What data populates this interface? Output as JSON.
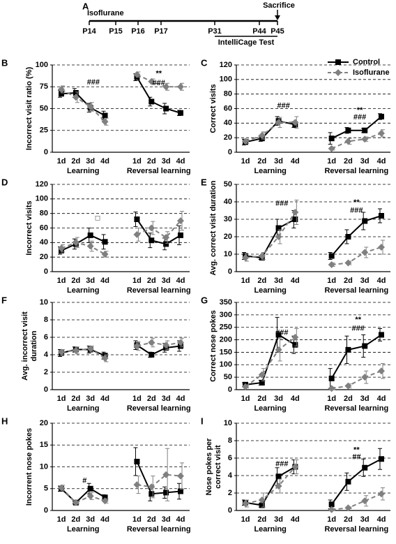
{
  "timeline": {
    "label": "A",
    "start": "Isoflurane",
    "end": "Sacrifice",
    "test": "IntelliCage Test",
    "ticks": [
      "P14",
      "P15",
      "P16",
      "P17",
      "P31",
      "P44",
      "P45"
    ]
  },
  "chart_data": [
    {
      "type": "line",
      "label": "B",
      "ylabel": [
        "Incorrect visit ratio (%)"
      ],
      "categories": [
        "1d",
        "2d",
        "3d",
        "4d",
        "1d",
        "2d",
        "3d",
        "4d"
      ],
      "groups": [
        "Learning",
        "Reversal learning"
      ],
      "ylim": [
        0,
        100
      ],
      "yticks": [
        0,
        25,
        50,
        75,
        100
      ],
      "grid": true,
      "series": [
        {
          "name": "Control",
          "color": "#000000",
          "values": [
            67,
            68,
            51,
            42,
            86,
            58,
            50,
            45
          ],
          "errors": [
            4,
            5,
            5,
            5,
            4,
            5,
            6,
            3
          ]
        },
        {
          "name": "Isoflurane",
          "color": "#808080",
          "values": [
            72,
            63,
            52,
            35,
            89,
            81,
            75,
            75
          ],
          "errors": [
            4,
            6,
            5,
            4,
            3,
            3,
            4,
            4
          ]
        }
      ],
      "annotations": [
        "###",
        "**",
        "###"
      ]
    },
    {
      "type": "line",
      "label": "C",
      "ylabel": [
        "Correct visits"
      ],
      "categories": [
        "1d",
        "2d",
        "3d",
        "4d",
        "1d",
        "2d",
        "3d",
        "4d"
      ],
      "groups": [
        "Learning",
        "Reversal learning"
      ],
      "ylim": [
        0,
        120
      ],
      "yticks": [
        0,
        20,
        40,
        60,
        80,
        100,
        120
      ],
      "grid": true,
      "series": [
        {
          "name": "Control",
          "color": "#000000",
          "values": [
            14,
            19,
            43,
            38,
            19,
            30,
            30,
            49
          ],
          "errors": [
            4,
            4,
            6,
            4,
            8,
            4,
            3,
            4
          ]
        },
        {
          "name": "Isoflurane",
          "color": "#808080",
          "values": [
            15,
            23,
            41,
            41,
            5,
            15,
            18,
            26
          ],
          "errors": [
            3,
            5,
            7,
            8,
            2,
            4,
            3,
            5
          ]
        }
      ],
      "annotations": [
        "###",
        "**",
        "###"
      ]
    },
    {
      "type": "line",
      "label": "D",
      "ylabel": [
        "Incorrect visits"
      ],
      "categories": [
        "1d",
        "2d",
        "3d",
        "4d",
        "1d",
        "2d",
        "3d",
        "4d"
      ],
      "groups": [
        "Learning",
        "Reversal learning"
      ],
      "ylim": [
        0,
        120
      ],
      "yticks": [
        0,
        20,
        40,
        60,
        80,
        100,
        120
      ],
      "grid": true,
      "series": [
        {
          "name": "Control",
          "color": "#000000",
          "values": [
            29,
            38,
            50,
            41,
            72,
            43,
            38,
            50
          ],
          "errors": [
            5,
            7,
            10,
            10,
            10,
            10,
            8,
            13
          ]
        },
        {
          "name": "Isoflurane",
          "color": "#808080",
          "values": [
            32,
            40,
            35,
            24,
            51,
            60,
            47,
            70
          ],
          "errors": [
            5,
            7,
            7,
            4,
            9,
            9,
            8,
            13
          ]
        }
      ],
      "annotations": [
        "□"
      ]
    },
    {
      "type": "line",
      "label": "E",
      "ylabel": [
        "Avg. correct visit duration"
      ],
      "categories": [
        "1d",
        "2d",
        "3d",
        "4d",
        "1d",
        "2d",
        "3d",
        "4d"
      ],
      "groups": [
        "Learning",
        "Reversal learning"
      ],
      "ylim": [
        0,
        50
      ],
      "yticks": [
        0,
        10,
        20,
        30,
        40,
        50
      ],
      "grid": true,
      "series": [
        {
          "name": "Control",
          "color": "#000000",
          "values": [
            9,
            8,
            25,
            30,
            9,
            20,
            29,
            32
          ],
          "errors": [
            2,
            1,
            5,
            5,
            2,
            4,
            5,
            4
          ]
        },
        {
          "name": "Isoflurane",
          "color": "#808080",
          "values": [
            8,
            9,
            20,
            34,
            4,
            5,
            11,
            14
          ],
          "errors": [
            2,
            2,
            4,
            7,
            1,
            1,
            3,
            4
          ]
        }
      ],
      "annotations": [
        "###",
        "**",
        "###"
      ]
    },
    {
      "type": "line",
      "label": "F",
      "ylabel": [
        "Avg. incorrect visit",
        "duration"
      ],
      "categories": [
        "1d",
        "2d",
        "3d",
        "4d",
        "1d",
        "2d",
        "3d",
        "4d"
      ],
      "groups": [
        "Learning",
        "Reversal learning"
      ],
      "ylim": [
        0,
        10
      ],
      "yticks": [
        0,
        2,
        4,
        6,
        8,
        10
      ],
      "grid": true,
      "series": [
        {
          "name": "Control",
          "color": "#000000",
          "values": [
            4.2,
            4.6,
            4.6,
            3.9,
            5.1,
            4.0,
            4.8,
            5.0
          ],
          "errors": [
            0.4,
            0.3,
            0.4,
            0.4,
            0.5,
            0.3,
            0.5,
            0.6
          ]
        },
        {
          "name": "Isoflurane",
          "color": "#808080",
          "values": [
            4.3,
            4.5,
            4.7,
            3.6,
            5.0,
            5.4,
            5.1,
            5.4
          ],
          "errors": [
            0.3,
            0.4,
            0.3,
            0.4,
            0.5,
            0.5,
            0.5,
            0.5
          ]
        }
      ]
    },
    {
      "type": "line",
      "label": "G",
      "ylabel": [
        "Correct nose pokes"
      ],
      "categories": [
        "1d",
        "2d",
        "3d",
        "4d",
        "1d",
        "2d",
        "3d",
        "4d"
      ],
      "groups": [
        "Learning",
        "Reversal learning"
      ],
      "ylim": [
        0,
        350
      ],
      "yticks": [
        0,
        50,
        100,
        150,
        200,
        250,
        300,
        350
      ],
      "grid": true,
      "series": [
        {
          "name": "Control",
          "color": "#000000",
          "values": [
            20,
            28,
            220,
            180,
            45,
            160,
            175,
            220
          ],
          "errors": [
            8,
            10,
            70,
            35,
            40,
            55,
            45,
            25
          ]
        },
        {
          "name": "Isoflurane",
          "color": "#808080",
          "values": [
            12,
            60,
            160,
            210,
            5,
            15,
            50,
            75
          ],
          "errors": [
            5,
            25,
            45,
            35,
            5,
            8,
            25,
            30
          ]
        }
      ],
      "annotations": [
        "###",
        "**",
        "###"
      ]
    },
    {
      "type": "line",
      "label": "H",
      "ylabel": [
        "Incorrent nose pokes"
      ],
      "categories": [
        "1d",
        "2d",
        "3d",
        "4d",
        "1d",
        "2d",
        "3d",
        "4d"
      ],
      "groups": [
        "Learning",
        "Reversal learning"
      ],
      "ylim": [
        0,
        20
      ],
      "yticks": [
        0,
        5,
        10,
        15,
        20
      ],
      "grid": true,
      "series": [
        {
          "name": "Control",
          "color": "#000000",
          "values": [
            5.0,
            1.8,
            5.0,
            3.0,
            11.2,
            3.8,
            4.1,
            4.4
          ],
          "errors": [
            0.6,
            0.3,
            1.2,
            0.6,
            3.2,
            1.6,
            1.3,
            1.8
          ]
        },
        {
          "name": "Isoflurane",
          "color": "#808080",
          "values": [
            5.2,
            1.8,
            3.3,
            2.2,
            5.9,
            5.4,
            8.2,
            7.9
          ],
          "errors": [
            0.6,
            0.3,
            0.8,
            0.5,
            2.0,
            2.5,
            6.0,
            3.0
          ]
        }
      ],
      "annotations": [
        "#"
      ]
    },
    {
      "type": "line",
      "label": "I",
      "ylabel": [
        "Nose pokes per",
        "correct visit"
      ],
      "categories": [
        "1d",
        "2d",
        "3d",
        "4d",
        "1d",
        "2d",
        "3d",
        "4d"
      ],
      "groups": [
        "Learning",
        "Reversal learning"
      ],
      "ylim": [
        0,
        10
      ],
      "yticks": [
        0,
        2,
        4,
        6,
        8,
        10
      ],
      "grid": true,
      "series": [
        {
          "name": "Control",
          "color": "#000000",
          "values": [
            0.9,
            0.6,
            3.9,
            5.0,
            0.7,
            3.3,
            4.9,
            5.9
          ],
          "errors": [
            0.3,
            0.2,
            1.0,
            0.8,
            0.5,
            1.0,
            1.0,
            1.2
          ]
        },
        {
          "name": "Isoflurane",
          "color": "#808080",
          "values": [
            0.8,
            1.2,
            2.8,
            5.0,
            0.1,
            0.3,
            1.1,
            1.9
          ],
          "errors": [
            0.4,
            0.8,
            0.8,
            0.8,
            0.1,
            0.1,
            0.6,
            0.7
          ]
        }
      ],
      "annotations": [
        "###",
        "**",
        "##"
      ]
    }
  ]
}
